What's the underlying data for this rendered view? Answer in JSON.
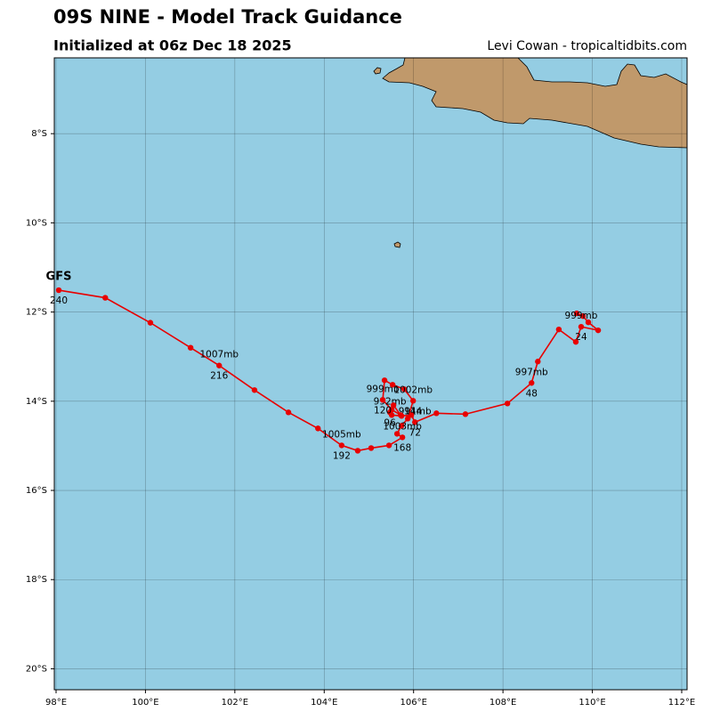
{
  "chart_data": {
    "type": "track",
    "title": "09S NINE - Model Track Guidance",
    "subtitle": "Initialized at 06z Dec 18 2025",
    "credit": "Levi Cowan - tropicaltidbits.com",
    "xlim": [
      97.96,
      112.12
    ],
    "ylim": [
      -20.47,
      -6.3
    ],
    "xticks": [
      {
        "value": 98,
        "label": "98°E"
      },
      {
        "value": 100,
        "label": "100°E"
      },
      {
        "value": 102,
        "label": "102°E"
      },
      {
        "value": 104,
        "label": "104°E"
      },
      {
        "value": 106,
        "label": "106°E"
      },
      {
        "value": 108,
        "label": "108°E"
      },
      {
        "value": 110,
        "label": "110°E"
      },
      {
        "value": 112,
        "label": "112°E"
      }
    ],
    "yticks": [
      {
        "value": -8,
        "label": "8°S"
      },
      {
        "value": -10,
        "label": "10°S"
      },
      {
        "value": -12,
        "label": "12°S"
      },
      {
        "value": -14,
        "label": "14°S"
      },
      {
        "value": -16,
        "label": "16°S"
      },
      {
        "value": -18,
        "label": "18°S"
      },
      {
        "value": -20,
        "label": "20°S"
      }
    ],
    "grid": true,
    "series": [
      {
        "name": "GFS",
        "color": "#e80000",
        "points": [
          {
            "lon": 109.65,
            "lat": -12.03
          },
          {
            "lon": 109.79,
            "lat": -12.09
          },
          {
            "lon": 109.91,
            "lat": -12.23
          },
          {
            "lon": 110.13,
            "lat": -12.41
          },
          {
            "lon": 109.75,
            "lat": -12.33,
            "hour": 24,
            "pressure": "999mb"
          },
          {
            "lon": 109.63,
            "lat": -12.67
          },
          {
            "lon": 109.25,
            "lat": -12.39
          },
          {
            "lon": 108.78,
            "lat": -13.11
          },
          {
            "lon": 108.64,
            "lat": -13.59,
            "hour": 48,
            "pressure": "997mb"
          },
          {
            "lon": 108.1,
            "lat": -14.05
          },
          {
            "lon": 107.16,
            "lat": -14.29
          },
          {
            "lon": 106.51,
            "lat": -14.27
          },
          {
            "lon": 106.03,
            "lat": -14.47,
            "hour": 72,
            "pressure": "991mb"
          },
          {
            "lon": 105.95,
            "lat": -14.31
          },
          {
            "lon": 105.73,
            "lat": -14.33
          },
          {
            "lon": 105.51,
            "lat": -14.31
          },
          {
            "lon": 105.47,
            "lat": -14.25,
            "hour": 96,
            "pressure": "992mb"
          },
          {
            "lon": 105.55,
            "lat": -14.09
          },
          {
            "lon": 105.71,
            "lat": -14.31
          },
          {
            "lon": 105.51,
            "lat": -14.19
          },
          {
            "lon": 105.31,
            "lat": -13.97,
            "hour": 120,
            "pressure": "999mb"
          },
          {
            "lon": 105.35,
            "lat": -13.53
          },
          {
            "lon": 105.53,
            "lat": -13.63
          },
          {
            "lon": 105.79,
            "lat": -13.73
          },
          {
            "lon": 105.99,
            "lat": -13.99,
            "hour": 144,
            "pressure": "1002mb"
          },
          {
            "lon": 105.87,
            "lat": -14.39
          },
          {
            "lon": 105.73,
            "lat": -14.55
          },
          {
            "lon": 105.63,
            "lat": -14.73
          },
          {
            "lon": 105.75,
            "lat": -14.81,
            "hour": 168,
            "pressure": "1003mb"
          },
          {
            "lon": 105.45,
            "lat": -14.99
          },
          {
            "lon": 105.05,
            "lat": -15.05
          },
          {
            "lon": 104.75,
            "lat": -15.11
          },
          {
            "lon": 104.39,
            "lat": -14.99,
            "hour": 192,
            "pressure": "1005mb"
          },
          {
            "lon": 103.86,
            "lat": -14.61
          },
          {
            "lon": 103.2,
            "lat": -14.25
          },
          {
            "lon": 102.44,
            "lat": -13.75
          },
          {
            "lon": 101.65,
            "lat": -13.2,
            "hour": 216,
            "pressure": "1007mb"
          },
          {
            "lon": 101.01,
            "lat": -12.8
          },
          {
            "lon": 100.11,
            "lat": -12.24
          },
          {
            "lon": 99.1,
            "lat": -11.68
          },
          {
            "lon": 98.06,
            "lat": -11.51,
            "hour": 240
          }
        ]
      }
    ]
  }
}
